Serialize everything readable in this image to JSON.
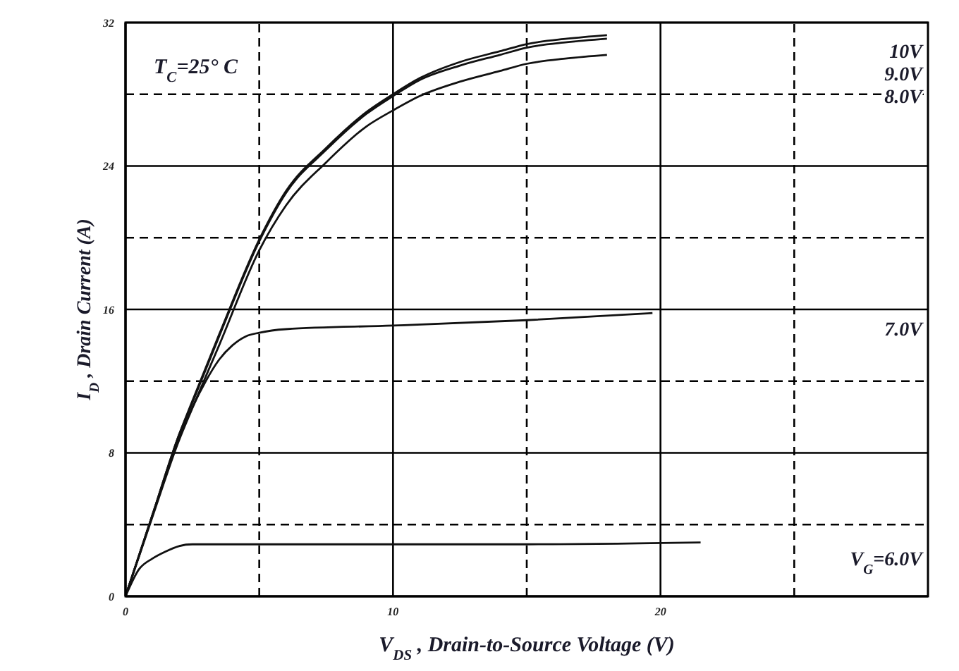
{
  "chart_data": {
    "type": "line",
    "xlabel": "V$_{DS}$ , Drain-to-Source Voltage (V)",
    "ylabel": "I$_{D}$ , Drain Current (A)",
    "annotations": [
      "T$_{C}$=25° C"
    ],
    "xlim": [
      0,
      30
    ],
    "xticks": [
      0,
      {
        "value": 5,
        "label": null
      },
      10,
      {
        "value": 15,
        "label": null
      },
      20,
      {
        "value": 25,
        "label": null
      }
    ],
    "ylim": [
      0,
      32
    ],
    "yticks": [
      0,
      {
        "value": 4,
        "label": null
      },
      8,
      {
        "value": 12,
        "label": null
      },
      16,
      {
        "value": 20,
        "label": null
      },
      24,
      {
        "value": 28,
        "label": null
      },
      32
    ],
    "grid": true,
    "marker": "none",
    "line_style": "solid",
    "series": [
      {
        "name": "10V",
        "color": "#111111",
        "x": [
          0,
          1,
          2,
          2.5,
          3.5,
          5,
          6,
          7.5,
          9,
          10,
          11,
          12.5,
          14,
          15,
          16.5,
          18
        ],
        "values": [
          0,
          4.5,
          9,
          10.9,
          14.6,
          19.9,
          22.6,
          25,
          27,
          28,
          28.9,
          29.8,
          30.4,
          30.8,
          31.1,
          31.3
        ]
      },
      {
        "name": "9.0V",
        "color": "#111111",
        "x": [
          0,
          1,
          2,
          2.5,
          3.5,
          5,
          6,
          7.5,
          9,
          10,
          11,
          12.5,
          14,
          15,
          16.5,
          18
        ],
        "values": [
          0,
          4.5,
          9,
          10.8,
          14.5,
          19.8,
          22.5,
          24.9,
          26.9,
          27.9,
          28.8,
          29.6,
          30.2,
          30.6,
          30.9,
          31.1
        ]
      },
      {
        "name": "8.0V",
        "color": "#111111",
        "x": [
          0,
          1,
          2,
          2.5,
          3.5,
          5,
          6,
          7.5,
          9,
          10,
          11,
          12.5,
          14,
          15,
          16.5,
          18
        ],
        "values": [
          0,
          4.4,
          8.7,
          10.5,
          14,
          19.3,
          21.8,
          24.2,
          26.2,
          27.1,
          27.9,
          28.7,
          29.3,
          29.7,
          30,
          30.2
        ]
      },
      {
        "name": "7.0V",
        "color": "#111111",
        "x": [
          0,
          1,
          2,
          3,
          3.5,
          4,
          4.5,
          5,
          6,
          10,
          15,
          19.7
        ],
        "values": [
          0,
          4.5,
          8.8,
          12,
          13.2,
          14,
          14.5,
          14.7,
          14.9,
          15.1,
          15.4,
          15.8
        ]
      },
      {
        "name": "V$_{G}$=6.0V",
        "color": "#111111",
        "x": [
          0,
          0.5,
          1,
          1.5,
          2,
          2.5,
          3,
          5,
          10,
          15,
          21.5
        ],
        "values": [
          0,
          1.5,
          2.1,
          2.5,
          2.8,
          2.9,
          2.9,
          2.9,
          2.9,
          2.9,
          3.0
        ]
      }
    ]
  }
}
